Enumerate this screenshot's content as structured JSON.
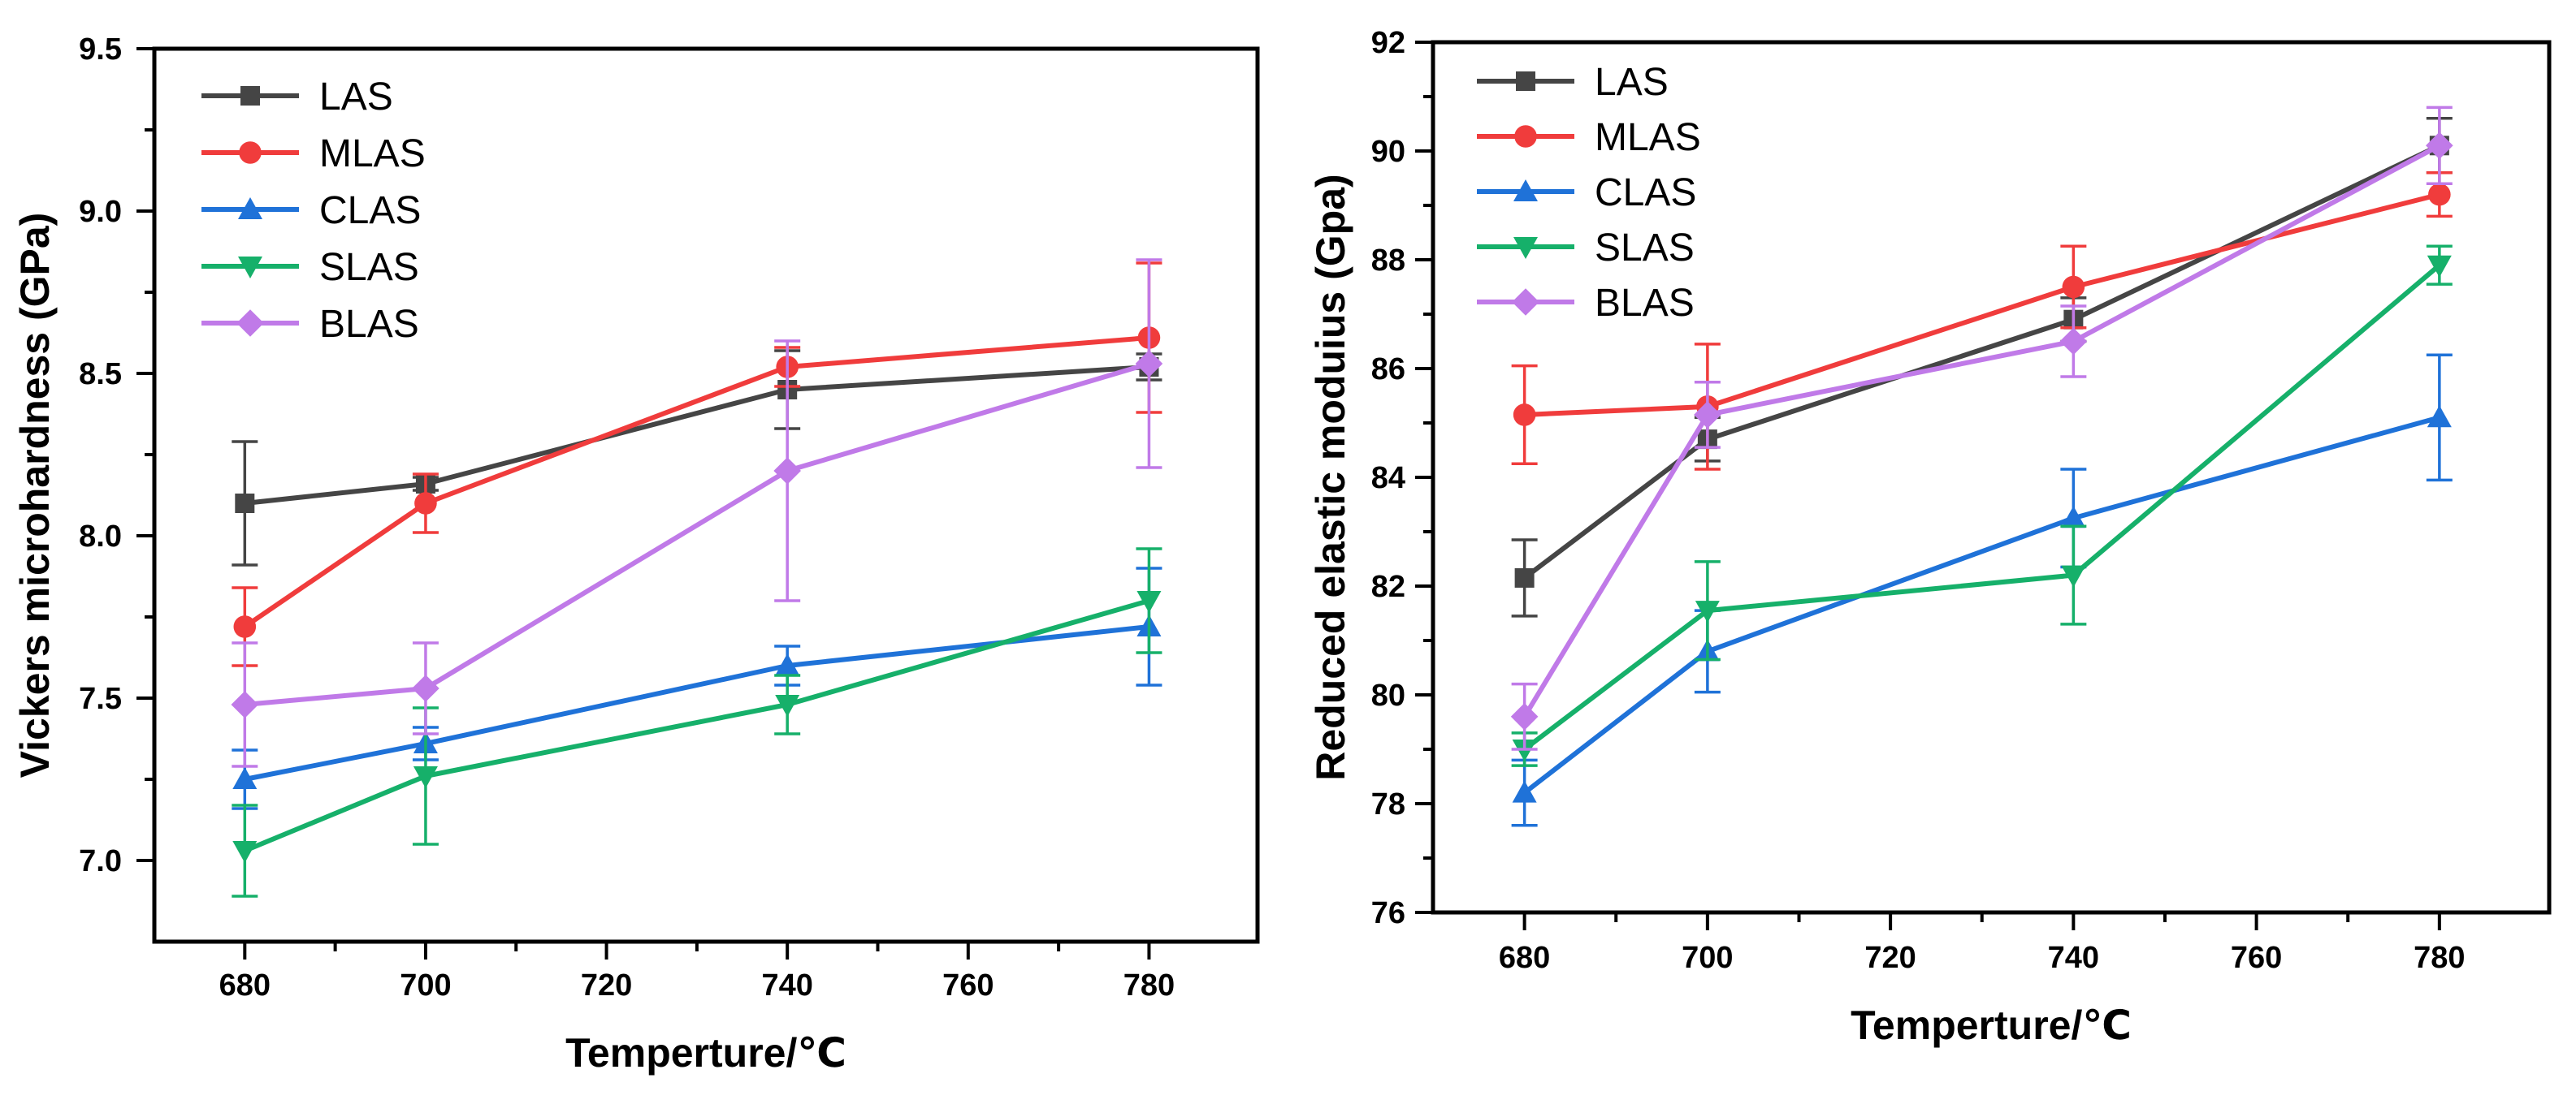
{
  "chart_data": [
    {
      "type": "line",
      "title": "",
      "xlabel": "Temperture/℃",
      "ylabel": "Vickers microhardness (GPa)",
      "xlim": [
        670,
        792
      ],
      "ylim": [
        6.75,
        9.5
      ],
      "xticks": [
        680,
        700,
        720,
        740,
        760,
        780
      ],
      "xtick_labels": [
        "680",
        "700",
        "720",
        "740",
        "760",
        "780"
      ],
      "yticks": [
        7.0,
        7.5,
        8.0,
        8.5,
        9.0,
        9.5
      ],
      "ytick_labels": [
        "7.0",
        "7.5",
        "8.0",
        "8.5",
        "9.0",
        "9.5"
      ],
      "grid": false,
      "legend_position": "top-left",
      "x": [
        680,
        700,
        740,
        780
      ],
      "series": [
        {
          "name": "LAS",
          "color": "#454545",
          "marker": "square",
          "values": [
            8.1,
            8.16,
            8.45,
            8.52
          ],
          "errors": [
            0.19,
            0.02,
            0.12,
            0.04
          ]
        },
        {
          "name": "MLAS",
          "color": "#f03c3c",
          "marker": "circle",
          "values": [
            7.72,
            8.1,
            8.52,
            8.61
          ],
          "errors": [
            0.12,
            0.09,
            0.06,
            0.23
          ]
        },
        {
          "name": "CLAS",
          "color": "#1f72d8",
          "marker": "triangle-up",
          "values": [
            7.25,
            7.36,
            7.6,
            7.72
          ],
          "errors": [
            0.09,
            0.05,
            0.06,
            0.18
          ]
        },
        {
          "name": "SLAS",
          "color": "#16b06a",
          "marker": "triangle-down",
          "values": [
            7.03,
            7.26,
            7.48,
            7.8
          ],
          "errors": [
            0.14,
            0.21,
            0.09,
            0.16
          ]
        },
        {
          "name": "BLAS",
          "color": "#c07ae8",
          "marker": "diamond",
          "values": [
            7.48,
            7.53,
            8.2,
            8.53
          ],
          "errors": [
            0.19,
            0.14,
            0.4,
            0.32
          ]
        }
      ]
    },
    {
      "type": "line",
      "title": "",
      "xlabel": "Temperture/℃",
      "ylabel": "Reduced elastic moduius (Gpa)",
      "xlim": [
        670,
        792
      ],
      "ylim": [
        76,
        92
      ],
      "xticks": [
        680,
        700,
        720,
        740,
        760,
        780
      ],
      "xtick_labels": [
        "680",
        "700",
        "720",
        "740",
        "760",
        "780"
      ],
      "yticks": [
        76,
        78,
        80,
        82,
        84,
        86,
        88,
        90,
        92
      ],
      "ytick_labels": [
        "76",
        "78",
        "80",
        "82",
        "84",
        "86",
        "88",
        "90",
        "92"
      ],
      "grid": false,
      "legend_position": "top-left",
      "x": [
        680,
        700,
        740,
        780
      ],
      "series": [
        {
          "name": "LAS",
          "color": "#454545",
          "marker": "square",
          "values": [
            82.15,
            84.7,
            86.9,
            90.1
          ],
          "errors": [
            0.7,
            0.4,
            0.4,
            0.5
          ]
        },
        {
          "name": "MLAS",
          "color": "#f03c3c",
          "marker": "circle",
          "values": [
            85.15,
            85.3,
            87.5,
            89.2
          ],
          "errors": [
            0.9,
            1.15,
            0.75,
            0.4
          ]
        },
        {
          "name": "CLAS",
          "color": "#1f72d8",
          "marker": "triangle-up",
          "values": [
            78.2,
            80.8,
            83.25,
            85.1
          ],
          "errors": [
            0.6,
            0.75,
            0.9,
            1.15
          ]
        },
        {
          "name": "SLAS",
          "color": "#16b06a",
          "marker": "triangle-down",
          "values": [
            79.0,
            81.55,
            82.2,
            87.9
          ],
          "errors": [
            0.3,
            0.9,
            0.9,
            0.35
          ]
        },
        {
          "name": "BLAS",
          "color": "#c07ae8",
          "marker": "diamond",
          "values": [
            79.6,
            85.15,
            86.5,
            90.1
          ],
          "errors": [
            0.6,
            0.6,
            0.65,
            0.7
          ]
        }
      ]
    }
  ]
}
